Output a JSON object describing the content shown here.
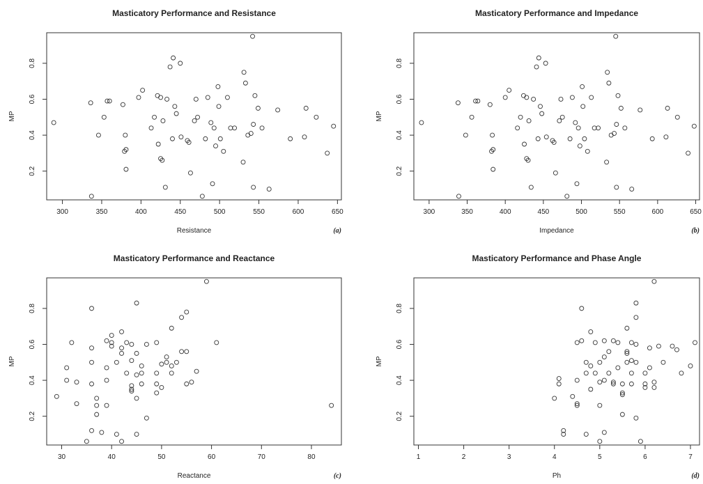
{
  "chart_data": [
    {
      "type": "scatter",
      "title": "Masticatory Performance and Resistance",
      "xlabel": "Resistance",
      "ylabel": "MP",
      "panel_tag": "(a)",
      "xlim": [
        280,
        655
      ],
      "ylim": [
        0.04,
        0.97
      ],
      "xticks": [
        300,
        350,
        400,
        450,
        500,
        550,
        600,
        650
      ],
      "yticks": [
        0.2,
        0.4,
        0.6,
        0.8
      ],
      "points": [
        [
          289,
          0.47
        ],
        [
          336,
          0.58
        ],
        [
          337,
          0.06
        ],
        [
          346,
          0.4
        ],
        [
          353,
          0.5
        ],
        [
          357,
          0.59
        ],
        [
          360,
          0.59
        ],
        [
          377,
          0.57
        ],
        [
          379,
          0.31
        ],
        [
          380,
          0.4
        ],
        [
          381,
          0.32
        ],
        [
          381,
          0.21
        ],
        [
          397,
          0.61
        ],
        [
          402,
          0.65
        ],
        [
          413,
          0.44
        ],
        [
          417,
          0.5
        ],
        [
          421,
          0.62
        ],
        [
          422,
          0.35
        ],
        [
          425,
          0.61
        ],
        [
          425,
          0.27
        ],
        [
          427,
          0.26
        ],
        [
          428,
          0.48
        ],
        [
          431,
          0.11
        ],
        [
          433,
          0.6
        ],
        [
          437,
          0.78
        ],
        [
          440,
          0.38
        ],
        [
          441,
          0.83
        ],
        [
          443,
          0.56
        ],
        [
          445,
          0.52
        ],
        [
          450,
          0.8
        ],
        [
          451,
          0.39
        ],
        [
          459,
          0.37
        ],
        [
          461,
          0.36
        ],
        [
          463,
          0.19
        ],
        [
          468,
          0.48
        ],
        [
          470,
          0.6
        ],
        [
          472,
          0.5
        ],
        [
          478,
          0.06
        ],
        [
          482,
          0.38
        ],
        [
          485,
          0.61
        ],
        [
          489,
          0.47
        ],
        [
          491,
          0.13
        ],
        [
          493,
          0.44
        ],
        [
          495,
          0.34
        ],
        [
          498,
          0.67
        ],
        [
          499,
          0.56
        ],
        [
          501,
          0.38
        ],
        [
          505,
          0.31
        ],
        [
          510,
          0.61
        ],
        [
          514,
          0.44
        ],
        [
          519,
          0.44
        ],
        [
          530,
          0.25
        ],
        [
          531,
          0.75
        ],
        [
          533,
          0.69
        ],
        [
          536,
          0.4
        ],
        [
          540,
          0.41
        ],
        [
          542,
          0.95
        ],
        [
          543,
          0.46
        ],
        [
          543,
          0.11
        ],
        [
          545,
          0.62
        ],
        [
          549,
          0.55
        ],
        [
          554,
          0.44
        ],
        [
          563,
          0.1
        ],
        [
          574,
          0.54
        ],
        [
          590,
          0.38
        ],
        [
          608,
          0.39
        ],
        [
          610,
          0.55
        ],
        [
          623,
          0.5
        ],
        [
          637,
          0.3
        ],
        [
          645,
          0.45
        ]
      ]
    },
    {
      "type": "scatter",
      "title": "Masticatory Performance and Impedance",
      "xlabel": "Impedance",
      "ylabel": "MP",
      "panel_tag": "(b)",
      "xlim": [
        280,
        655
      ],
      "ylim": [
        0.04,
        0.97
      ],
      "xticks": [
        300,
        350,
        400,
        450,
        500,
        550,
        600,
        650
      ],
      "yticks": [
        0.2,
        0.4,
        0.6,
        0.8
      ],
      "points": [
        [
          290,
          0.47
        ],
        [
          338,
          0.58
        ],
        [
          339,
          0.06
        ],
        [
          348,
          0.4
        ],
        [
          356,
          0.5
        ],
        [
          361,
          0.59
        ],
        [
          364,
          0.59
        ],
        [
          380,
          0.57
        ],
        [
          382,
          0.31
        ],
        [
          383,
          0.4
        ],
        [
          384,
          0.32
        ],
        [
          384,
          0.21
        ],
        [
          400,
          0.61
        ],
        [
          405,
          0.65
        ],
        [
          416,
          0.44
        ],
        [
          420,
          0.5
        ],
        [
          424,
          0.62
        ],
        [
          425,
          0.35
        ],
        [
          428,
          0.61
        ],
        [
          428,
          0.27
        ],
        [
          430,
          0.26
        ],
        [
          431,
          0.48
        ],
        [
          434,
          0.11
        ],
        [
          437,
          0.6
        ],
        [
          441,
          0.78
        ],
        [
          443,
          0.38
        ],
        [
          444,
          0.83
        ],
        [
          446,
          0.56
        ],
        [
          448,
          0.52
        ],
        [
          453,
          0.8
        ],
        [
          454,
          0.39
        ],
        [
          462,
          0.37
        ],
        [
          464,
          0.36
        ],
        [
          466,
          0.19
        ],
        [
          471,
          0.48
        ],
        [
          473,
          0.6
        ],
        [
          475,
          0.5
        ],
        [
          481,
          0.06
        ],
        [
          485,
          0.38
        ],
        [
          488,
          0.61
        ],
        [
          492,
          0.47
        ],
        [
          494,
          0.13
        ],
        [
          496,
          0.44
        ],
        [
          498,
          0.34
        ],
        [
          501,
          0.67
        ],
        [
          502,
          0.56
        ],
        [
          504,
          0.38
        ],
        [
          508,
          0.31
        ],
        [
          513,
          0.61
        ],
        [
          517,
          0.44
        ],
        [
          522,
          0.44
        ],
        [
          533,
          0.25
        ],
        [
          534,
          0.75
        ],
        [
          536,
          0.69
        ],
        [
          539,
          0.4
        ],
        [
          543,
          0.41
        ],
        [
          545,
          0.95
        ],
        [
          546,
          0.46
        ],
        [
          546,
          0.11
        ],
        [
          548,
          0.62
        ],
        [
          552,
          0.55
        ],
        [
          557,
          0.44
        ],
        [
          566,
          0.1
        ],
        [
          577,
          0.54
        ],
        [
          593,
          0.38
        ],
        [
          611,
          0.39
        ],
        [
          613,
          0.55
        ],
        [
          626,
          0.5
        ],
        [
          640,
          0.3
        ],
        [
          648,
          0.45
        ]
      ]
    },
    {
      "type": "scatter",
      "title": "Masticatory Performance and Reactance",
      "xlabel": "Reactance",
      "ylabel": "MP",
      "panel_tag": "(c)",
      "xlim": [
        27,
        86
      ],
      "ylim": [
        0.04,
        0.97
      ],
      "xticks": [
        30,
        40,
        50,
        60,
        70,
        80
      ],
      "yticks": [
        0.2,
        0.4,
        0.6,
        0.8
      ],
      "points": [
        [
          29,
          0.31
        ],
        [
          31,
          0.47
        ],
        [
          31,
          0.4
        ],
        [
          32,
          0.61
        ],
        [
          33,
          0.27
        ],
        [
          33,
          0.39
        ],
        [
          35,
          0.06
        ],
        [
          36,
          0.8
        ],
        [
          36,
          0.58
        ],
        [
          36,
          0.5
        ],
        [
          36,
          0.38
        ],
        [
          36,
          0.12
        ],
        [
          37,
          0.3
        ],
        [
          37,
          0.26
        ],
        [
          37,
          0.21
        ],
        [
          38,
          0.11
        ],
        [
          39,
          0.62
        ],
        [
          39,
          0.47
        ],
        [
          39,
          0.4
        ],
        [
          39,
          0.26
        ],
        [
          40,
          0.65
        ],
        [
          40,
          0.61
        ],
        [
          40,
          0.59
        ],
        [
          41,
          0.5
        ],
        [
          41,
          0.1
        ],
        [
          42,
          0.67
        ],
        [
          42,
          0.58
        ],
        [
          42,
          0.55
        ],
        [
          42,
          0.06
        ],
        [
          43,
          0.61
        ],
        [
          43,
          0.44
        ],
        [
          44,
          0.6
        ],
        [
          44,
          0.51
        ],
        [
          44,
          0.37
        ],
        [
          44,
          0.35
        ],
        [
          44,
          0.34
        ],
        [
          45,
          0.83
        ],
        [
          45,
          0.55
        ],
        [
          45,
          0.43
        ],
        [
          45,
          0.3
        ],
        [
          45,
          0.1
        ],
        [
          46,
          0.48
        ],
        [
          46,
          0.44
        ],
        [
          46,
          0.38
        ],
        [
          47,
          0.6
        ],
        [
          47,
          0.19
        ],
        [
          49,
          0.61
        ],
        [
          49,
          0.44
        ],
        [
          49,
          0.38
        ],
        [
          49,
          0.33
        ],
        [
          50,
          0.49
        ],
        [
          50,
          0.36
        ],
        [
          51,
          0.53
        ],
        [
          51,
          0.5
        ],
        [
          52,
          0.69
        ],
        [
          52,
          0.48
        ],
        [
          52,
          0.44
        ],
        [
          53,
          0.5
        ],
        [
          54,
          0.75
        ],
        [
          54,
          0.56
        ],
        [
          55,
          0.78
        ],
        [
          55,
          0.56
        ],
        [
          55,
          0.38
        ],
        [
          56,
          0.39
        ],
        [
          57,
          0.45
        ],
        [
          59,
          0.95
        ],
        [
          61,
          0.61
        ],
        [
          84,
          0.26
        ]
      ]
    },
    {
      "type": "scatter",
      "title": "Masticatory Performance and Phase Angle",
      "xlabel": "Ph",
      "ylabel": "MP",
      "panel_tag": "(d)",
      "xlim": [
        0.9,
        7.2
      ],
      "ylim": [
        0.04,
        0.97
      ],
      "xticks": [
        1,
        2,
        3,
        4,
        5,
        6,
        7
      ],
      "yticks": [
        0.2,
        0.4,
        0.6,
        0.8
      ],
      "points": [
        [
          4.0,
          0.3
        ],
        [
          4.1,
          0.41
        ],
        [
          4.1,
          0.38
        ],
        [
          4.2,
          0.12
        ],
        [
          4.2,
          0.1
        ],
        [
          4.4,
          0.31
        ],
        [
          4.5,
          0.61
        ],
        [
          4.5,
          0.4
        ],
        [
          4.5,
          0.27
        ],
        [
          4.5,
          0.26
        ],
        [
          4.6,
          0.8
        ],
        [
          4.6,
          0.62
        ],
        [
          4.7,
          0.5
        ],
        [
          4.7,
          0.44
        ],
        [
          4.7,
          0.1
        ],
        [
          4.8,
          0.67
        ],
        [
          4.8,
          0.48
        ],
        [
          4.8,
          0.35
        ],
        [
          4.9,
          0.61
        ],
        [
          4.9,
          0.44
        ],
        [
          5.0,
          0.5
        ],
        [
          5.0,
          0.39
        ],
        [
          5.0,
          0.26
        ],
        [
          5.0,
          0.06
        ],
        [
          5.1,
          0.62
        ],
        [
          5.1,
          0.53
        ],
        [
          5.1,
          0.4
        ],
        [
          5.1,
          0.11
        ],
        [
          5.2,
          0.56
        ],
        [
          5.2,
          0.44
        ],
        [
          5.3,
          0.62
        ],
        [
          5.3,
          0.39
        ],
        [
          5.3,
          0.38
        ],
        [
          5.4,
          0.61
        ],
        [
          5.4,
          0.47
        ],
        [
          5.5,
          0.38
        ],
        [
          5.5,
          0.33
        ],
        [
          5.5,
          0.32
        ],
        [
          5.5,
          0.21
        ],
        [
          5.6,
          0.69
        ],
        [
          5.6,
          0.56
        ],
        [
          5.6,
          0.55
        ],
        [
          5.6,
          0.5
        ],
        [
          5.7,
          0.61
        ],
        [
          5.7,
          0.51
        ],
        [
          5.7,
          0.44
        ],
        [
          5.7,
          0.38
        ],
        [
          5.8,
          0.83
        ],
        [
          5.8,
          0.75
        ],
        [
          5.8,
          0.6
        ],
        [
          5.8,
          0.5
        ],
        [
          5.8,
          0.19
        ],
        [
          5.9,
          0.06
        ],
        [
          6.0,
          0.44
        ],
        [
          6.0,
          0.38
        ],
        [
          6.0,
          0.36
        ],
        [
          6.1,
          0.58
        ],
        [
          6.1,
          0.47
        ],
        [
          6.2,
          0.95
        ],
        [
          6.2,
          0.39
        ],
        [
          6.2,
          0.36
        ],
        [
          6.3,
          0.59
        ],
        [
          6.4,
          0.5
        ],
        [
          6.6,
          0.59
        ],
        [
          6.7,
          0.57
        ],
        [
          6.8,
          0.44
        ],
        [
          7.0,
          0.48
        ],
        [
          7.1,
          0.61
        ]
      ]
    }
  ]
}
